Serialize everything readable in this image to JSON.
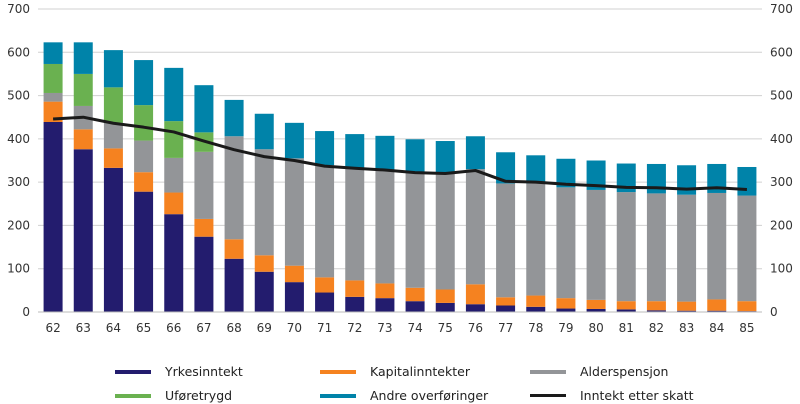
{
  "chart_data": {
    "type": "bar",
    "stacked": true,
    "categories": [
      "62",
      "63",
      "64",
      "65",
      "66",
      "67",
      "68",
      "69",
      "70",
      "71",
      "72",
      "73",
      "74",
      "75",
      "76",
      "77",
      "78",
      "79",
      "80",
      "81",
      "82",
      "83",
      "84",
      "85"
    ],
    "ylim": [
      0,
      700
    ],
    "yticks": [
      0,
      100,
      200,
      300,
      400,
      500,
      600,
      700
    ],
    "secondary_yticks": [
      0,
      100,
      200,
      300,
      400,
      500,
      600,
      700
    ],
    "grid": true,
    "legend_placement": "bottom",
    "series": [
      {
        "name": "Yrkesinntekt",
        "color": "#231c6e",
        "type": "bar",
        "values": [
          439,
          376,
          333,
          278,
          226,
          174,
          123,
          93,
          69,
          45,
          35,
          32,
          25,
          21,
          18,
          15,
          12,
          8,
          7,
          6,
          4,
          3,
          3,
          2
        ]
      },
      {
        "name": "Kapitalinntekter",
        "color": "#f58220",
        "type": "bar",
        "values": [
          47,
          46,
          45,
          45,
          50,
          41,
          45,
          38,
          38,
          35,
          38,
          34,
          31,
          31,
          46,
          19,
          26,
          24,
          21,
          19,
          21,
          21,
          26,
          23
        ]
      },
      {
        "name": "Alderspensjon",
        "color": "#939598",
        "type": "bar",
        "values": [
          20,
          54,
          59,
          73,
          80,
          155,
          238,
          245,
          248,
          259,
          259,
          262,
          266,
          268,
          266,
          263,
          259,
          256,
          254,
          252,
          249,
          247,
          246,
          244
        ]
      },
      {
        "name": "Uføretrygd",
        "color": "#6ab150",
        "type": "bar",
        "values": [
          67,
          74,
          82,
          82,
          85,
          45,
          0,
          0,
          0,
          0,
          0,
          0,
          0,
          0,
          0,
          0,
          0,
          0,
          0,
          0,
          0,
          0,
          0,
          0
        ]
      },
      {
        "name": "Andre overføringer",
        "color": "#0083a9",
        "type": "bar",
        "values": [
          50,
          73,
          86,
          104,
          123,
          109,
          84,
          82,
          82,
          79,
          79,
          79,
          77,
          75,
          76,
          72,
          65,
          66,
          68,
          66,
          68,
          68,
          67,
          66
        ]
      },
      {
        "name": "Inntekt etter skatt",
        "color": "#1a1a1a",
        "type": "line",
        "values": [
          446,
          450,
          436,
          427,
          416,
          395,
          375,
          359,
          350,
          337,
          332,
          328,
          322,
          320,
          327,
          302,
          300,
          295,
          292,
          288,
          287,
          284,
          287,
          283
        ]
      }
    ]
  }
}
